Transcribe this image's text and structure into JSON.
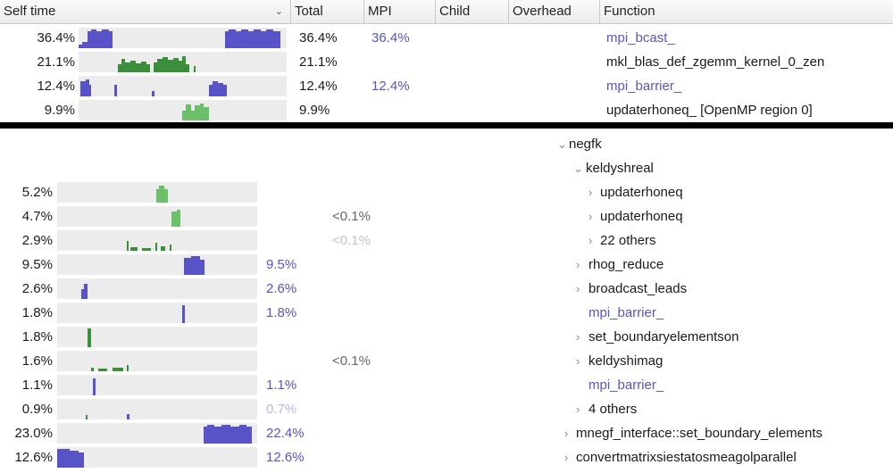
{
  "colors": {
    "mpi": "#5854c8",
    "compute": "#3c8f3a",
    "openmp": "#6cc06a",
    "faint": "#b7b5ec",
    "bar_bg": "#ececec"
  },
  "header": {
    "self_time": "Self time",
    "sort_icon": "⌄",
    "total": "Total",
    "mpi": "MPI",
    "child": "Child",
    "overhead": "Overhead",
    "function": "Function"
  },
  "top_rows": [
    {
      "self": "36.4%",
      "total": "36.4%",
      "mpi": "36.4%",
      "function": "mpi_bcast_",
      "is_mpi": true
    },
    {
      "self": "21.1%",
      "total": "21.1%",
      "mpi": "",
      "function": "mkl_blas_def_zgemm_kernel_0_zen",
      "is_mpi": false
    },
    {
      "self": "12.4%",
      "total": "12.4%",
      "mpi": "12.4%",
      "function": "mpi_barrier_",
      "is_mpi": true
    },
    {
      "self": "9.9%",
      "total": "9.9%",
      "mpi": "",
      "function": "updaterhoneq_ [OpenMP region 0]",
      "is_mpi": false
    }
  ],
  "tree_rows": [
    {
      "self": "",
      "col2": "",
      "col3": "",
      "function": "negfk",
      "chevron": "⌄",
      "is_mpi": false
    },
    {
      "self": "",
      "col2": "",
      "col3": "",
      "function": "keldyshreal",
      "chevron": "⌄",
      "is_mpi": false
    },
    {
      "self": "5.2%",
      "col2": "",
      "col3": "",
      "function": "updaterhoneq",
      "chevron": "›",
      "is_mpi": false
    },
    {
      "self": "4.7%",
      "col2": "",
      "col3": "<0.1%",
      "function": "updaterhoneq",
      "chevron": "›",
      "is_mpi": false
    },
    {
      "self": "2.9%",
      "col2": "",
      "col3": "<0.1%",
      "function": "22 others",
      "chevron": "›",
      "is_mpi": false
    },
    {
      "self": "9.5%",
      "col2": "9.5%",
      "col3": "",
      "function": "rhog_reduce",
      "chevron": "›",
      "is_mpi": false
    },
    {
      "self": "2.6%",
      "col2": "2.6%",
      "col3": "",
      "function": "broadcast_leads",
      "chevron": "›",
      "is_mpi": false
    },
    {
      "self": "1.8%",
      "col2": "1.8%",
      "col3": "",
      "function": "mpi_barrier_",
      "chevron": "",
      "is_mpi": true
    },
    {
      "self": "1.8%",
      "col2": "",
      "col3": "",
      "function": "set_boundaryelementson",
      "chevron": "›",
      "is_mpi": false
    },
    {
      "self": "1.6%",
      "col2": "",
      "col3": "<0.1%",
      "function": "keldyshimag",
      "chevron": "›",
      "is_mpi": false
    },
    {
      "self": "1.1%",
      "col2": "1.1%",
      "col3": "",
      "function": "mpi_barrier_",
      "chevron": "",
      "is_mpi": true
    },
    {
      "self": "0.9%",
      "col2": "0.7%",
      "col3": "",
      "function": "4 others",
      "chevron": "›",
      "is_mpi": false
    },
    {
      "self": "23.0%",
      "col2": "22.4%",
      "col3": "",
      "function": "mnegf_interface::set_boundary_elements",
      "chevron": "›",
      "is_mpi": false
    },
    {
      "self": "12.6%",
      "col2": "12.6%",
      "col3": "",
      "function": "convertmatrixsiestatosmeagolparallel",
      "chevron": "›",
      "is_mpi": false
    }
  ]
}
